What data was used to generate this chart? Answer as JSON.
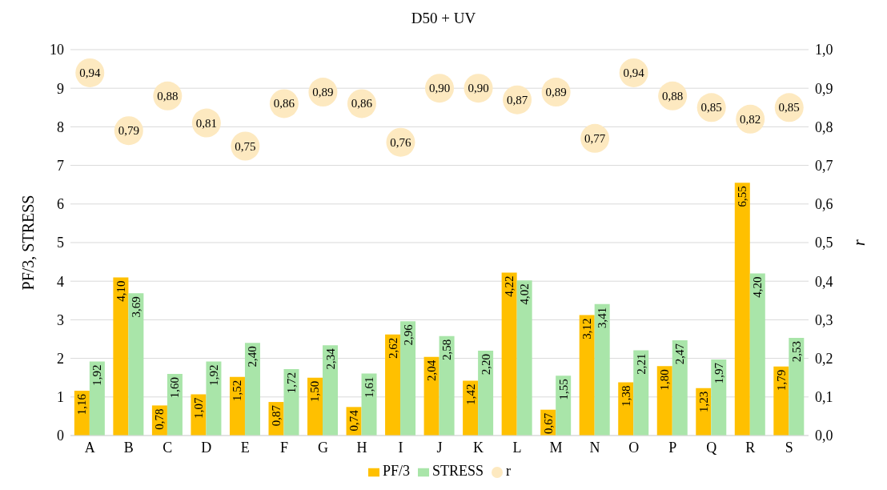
{
  "chart_data": {
    "type": "bar",
    "title": "D50 + UV",
    "ylabel": "PF/3, STRESS",
    "y2label": "r",
    "categories": [
      "A",
      "B",
      "C",
      "D",
      "E",
      "F",
      "G",
      "H",
      "I",
      "J",
      "K",
      "L",
      "M",
      "N",
      "O",
      "P",
      "Q",
      "R",
      "S"
    ],
    "series": [
      {
        "name": "PF/3",
        "color": "#ffc000",
        "values": [
          1.16,
          4.1,
          0.78,
          1.07,
          1.52,
          0.87,
          1.5,
          0.74,
          2.62,
          2.04,
          1.42,
          4.22,
          0.67,
          3.12,
          1.38,
          1.8,
          1.23,
          6.55,
          1.79
        ],
        "value_labels": [
          "1,16",
          "4,10",
          "0,78",
          "1,07",
          "1,52",
          "0,87",
          "1,50",
          "0,74",
          "2,62",
          "2,04",
          "1,42",
          "4,22",
          "0,67",
          "3,12",
          "1,38",
          "1,80",
          "1,23",
          "6,55",
          "1,79"
        ]
      },
      {
        "name": "STRESS",
        "color": "#a9e5a9",
        "values": [
          1.92,
          3.69,
          1.6,
          1.92,
          2.4,
          1.72,
          2.34,
          1.61,
          2.96,
          2.58,
          2.2,
          4.02,
          1.55,
          3.41,
          2.21,
          2.47,
          1.97,
          4.2,
          2.53
        ],
        "value_labels": [
          "1,92",
          "3,69",
          "1,60",
          "1,92",
          "2,40",
          "1,72",
          "2,34",
          "1,61",
          "2,96",
          "2,58",
          "2,20",
          "4,02",
          "1,55",
          "3,41",
          "2,21",
          "2,47",
          "1,97",
          "4,20",
          "2,53"
        ]
      },
      {
        "name": "r",
        "type": "scatter",
        "axis": "y2",
        "color": "#fde9c0",
        "values": [
          0.94,
          0.79,
          0.88,
          0.81,
          0.75,
          0.86,
          0.89,
          0.86,
          0.76,
          0.9,
          0.9,
          0.87,
          0.89,
          0.77,
          0.94,
          0.88,
          0.85,
          0.82,
          0.85
        ],
        "value_labels": [
          "0,94",
          "0,79",
          "0,88",
          "0,81",
          "0,75",
          "0,86",
          "0,89",
          "0,86",
          "0,76",
          "0,90",
          "0,90",
          "0,87",
          "0,89",
          "0,77",
          "0,94",
          "0,88",
          "0,85",
          "0,82",
          "0,85"
        ]
      }
    ],
    "ylim": [
      0,
      10
    ],
    "yticks": [
      0,
      1,
      2,
      3,
      4,
      5,
      6,
      7,
      8,
      9,
      10
    ],
    "y2lim": [
      0,
      1
    ],
    "y2ticks": [
      {
        "value": 0,
        "label": "0,0"
      },
      {
        "value": 0.1,
        "label": "0,1"
      },
      {
        "value": 0.2,
        "label": "0,2"
      },
      {
        "value": 0.3,
        "label": "0,3"
      },
      {
        "value": 0.4,
        "label": "0,4"
      },
      {
        "value": 0.5,
        "label": "0,5"
      },
      {
        "value": 0.6,
        "label": "0,6"
      },
      {
        "value": 0.7,
        "label": "0,7"
      },
      {
        "value": 0.8,
        "label": "0,8"
      },
      {
        "value": 0.9,
        "label": "0,9"
      },
      {
        "value": 1,
        "label": "1,0"
      }
    ],
    "grid": "y",
    "legend": "bottom",
    "marker": "circle"
  }
}
